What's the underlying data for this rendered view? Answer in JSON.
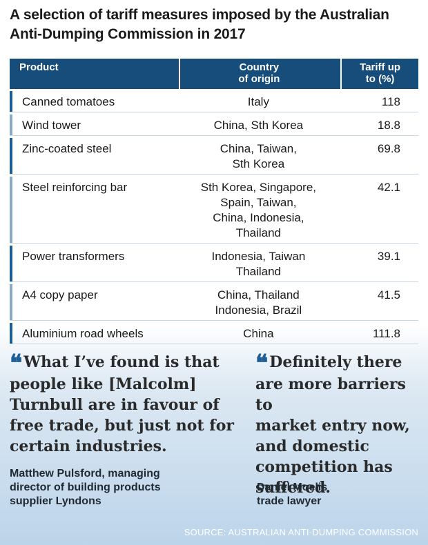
{
  "title": "A selection of tariff measures imposed by the Australian Anti-Dumping Commission in 2017",
  "chart_data": {
    "type": "table",
    "columns": [
      "Product",
      "Country of origin",
      "Tariff up to (%)"
    ],
    "header": {
      "product": "Product",
      "country_line1": "Country",
      "country_line2": "of origin",
      "tariff_line1": "Tariff up",
      "tariff_line2": "to (%)"
    },
    "rows": [
      {
        "product": "Canned tomatoes",
        "country_lines": [
          "Italy"
        ],
        "tariff": "118"
      },
      {
        "product": "Wind tower",
        "country_lines": [
          "China, Sth Korea"
        ],
        "tariff": "18.8"
      },
      {
        "product": "Zinc-coated steel",
        "country_lines": [
          "China, Taiwan,",
          "Sth Korea"
        ],
        "tariff": "69.8"
      },
      {
        "product": "Steel reinforcing bar",
        "country_lines": [
          "Sth Korea, Singapore,",
          "Spain, Taiwan,",
          "China, Indonesia,",
          "Thailand"
        ],
        "tariff": "42.1"
      },
      {
        "product": "Power transformers",
        "country_lines": [
          "Indonesia, Taiwan",
          "Thailand"
        ],
        "tariff": "39.1"
      },
      {
        "product": "A4 copy paper",
        "country_lines": [
          "China, Thailand",
          "Indonesia, Brazil"
        ],
        "tariff": "41.5"
      },
      {
        "product": "Aluminium road wheels",
        "country_lines": [
          "China"
        ],
        "tariff": "111.8"
      }
    ]
  },
  "quotes": [
    {
      "mark": "❝",
      "text_lines": [
        "What I’ve found is that",
        "people like [Malcolm]",
        "Turnbull are in favour of",
        "free trade, but just not for",
        "certain industries."
      ],
      "attribution_lines": [
        "Matthew Pulsford, managing",
        "director of building products",
        "supplier Lyndons"
      ]
    },
    {
      "mark": "❝",
      "text_lines": [
        "Definitely there",
        "are more barriers to",
        "market entry now,",
        "and domestic",
        "competition has",
        "suffered."
      ],
      "attribution_lines": [
        "Daniel Moelis",
        "trade lawyer"
      ]
    }
  ],
  "source": "SOURCE: AUSTRALIAN ANTI-DUMPING COMMISSION",
  "colors": {
    "header_bg": "#174d7a",
    "accent": "#1f5f95",
    "row_marker": "#1c5e94"
  }
}
